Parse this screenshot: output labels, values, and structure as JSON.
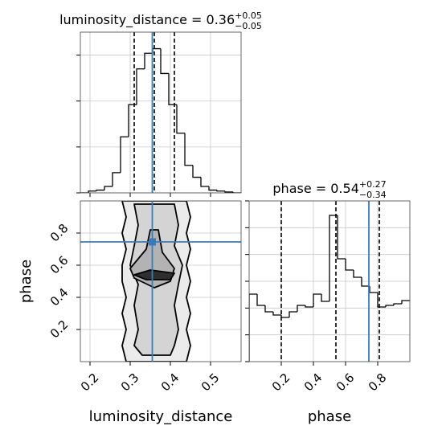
{
  "chart_data": [
    {
      "type": "histogram",
      "title": "luminosity_distance = 0.36",
      "title_sup": "+0.05",
      "title_sub": "−0.05",
      "bins": [
        0.176,
        0.196,
        0.216,
        0.236,
        0.256,
        0.276,
        0.296,
        0.316,
        0.336,
        0.356,
        0.376,
        0.396,
        0.416,
        0.436,
        0.456,
        0.476,
        0.496,
        0.516,
        0.536,
        0.556,
        0.576
      ],
      "values": [
        0,
        2,
        3,
        7,
        22,
        61,
        96,
        135,
        152,
        157,
        130,
        96,
        65,
        30,
        17,
        7,
        3,
        2,
        1,
        0
      ],
      "xlim": [
        0.176,
        0.576
      ],
      "xticks": [
        0.2,
        0.3,
        0.4,
        0.5
      ],
      "ylim": [
        0,
        175
      ],
      "yticks": [
        0,
        50,
        100,
        150
      ],
      "tick_labels": false,
      "grid": true,
      "color": "#000000",
      "quantiles": [
        0.31,
        0.36,
        0.41
      ],
      "truth": 0.355,
      "truth_color": "#3d7ab8"
    },
    {
      "type": "contour",
      "xlabel": "luminosity_distance",
      "ylabel": "phase",
      "xlim": [
        0.176,
        0.576
      ],
      "xticks": [
        0.2,
        0.3,
        0.4,
        0.5
      ],
      "ylim": [
        0,
        1
      ],
      "yticks": [
        0.2,
        0.4,
        0.6,
        0.8
      ],
      "tick_labels": true,
      "grid": true,
      "contours": [
        {
          "fill": "#ebebeb",
          "x": [
            0.28,
            0.29,
            0.28,
            0.29,
            0.28,
            0.28,
            0.29,
            0.28,
            0.29,
            0.28,
            0.29,
            0.44,
            0.45,
            0.44,
            0.45,
            0.44,
            0.45,
            0.44,
            0.45,
            0.44,
            0.45,
            0.44
          ],
          "y": [
            1.0,
            0.9,
            0.8,
            0.7,
            0.6,
            0.5,
            0.4,
            0.3,
            0.2,
            0.1,
            0.0,
            0.0,
            0.1,
            0.2,
            0.3,
            0.4,
            0.5,
            0.6,
            0.7,
            0.8,
            0.9,
            1.0
          ]
        },
        {
          "fill": "#d4d4d4",
          "x": [
            0.31,
            0.32,
            0.31,
            0.3,
            0.32,
            0.31,
            0.32,
            0.31,
            0.33,
            0.4,
            0.41,
            0.42,
            0.41,
            0.42,
            0.43,
            0.41,
            0.42,
            0.41
          ],
          "y": [
            0.98,
            0.85,
            0.72,
            0.6,
            0.48,
            0.35,
            0.2,
            0.1,
            0.04,
            0.04,
            0.1,
            0.2,
            0.35,
            0.48,
            0.6,
            0.72,
            0.85,
            0.98
          ]
        },
        {
          "fill": "#b3b3b3",
          "x": [
            0.35,
            0.34,
            0.3,
            0.31,
            0.36,
            0.4,
            0.41,
            0.38,
            0.37
          ],
          "y": [
            0.82,
            0.7,
            0.58,
            0.52,
            0.46,
            0.5,
            0.58,
            0.68,
            0.82
          ]
        },
        {
          "fill": "#2e2e2e",
          "x": [
            0.31,
            0.35,
            0.41,
            0.4,
            0.34
          ],
          "y": [
            0.54,
            0.57,
            0.55,
            0.51,
            0.51
          ]
        }
      ],
      "truth_x": 0.355,
      "truth_y": 0.745,
      "truth_color": "#3d7ab8"
    },
    {
      "type": "histogram",
      "title": "phase = 0.54",
      "title_sup": "+0.27",
      "title_sub": "−0.34",
      "xlabel": "phase",
      "bins": [
        0.0,
        0.05,
        0.1,
        0.15,
        0.2,
        0.25,
        0.3,
        0.35,
        0.4,
        0.45,
        0.5,
        0.55,
        0.6,
        0.65,
        0.7,
        0.75,
        0.8,
        0.85,
        0.9,
        0.95,
        1.0
      ],
      "values": [
        2.52,
        2.1,
        1.86,
        1.74,
        1.65,
        1.86,
        2.1,
        2.04,
        2.52,
        2.25,
        5.46,
        3.84,
        3.42,
        3.15,
        2.82,
        2.58,
        2.04,
        2.1,
        2.16,
        2.28
      ],
      "xlim": [
        0,
        1
      ],
      "xticks": [
        0.2,
        0.4,
        0.6,
        0.8
      ],
      "ylim": [
        0,
        6
      ],
      "yticks": [
        0,
        1,
        2,
        3,
        4,
        5,
        6
      ],
      "tick_labels": "x",
      "grid": true,
      "color": "#000000",
      "quantiles": [
        0.2,
        0.54,
        0.81
      ],
      "truth": 0.745,
      "truth_color": "#3d7ab8"
    }
  ]
}
